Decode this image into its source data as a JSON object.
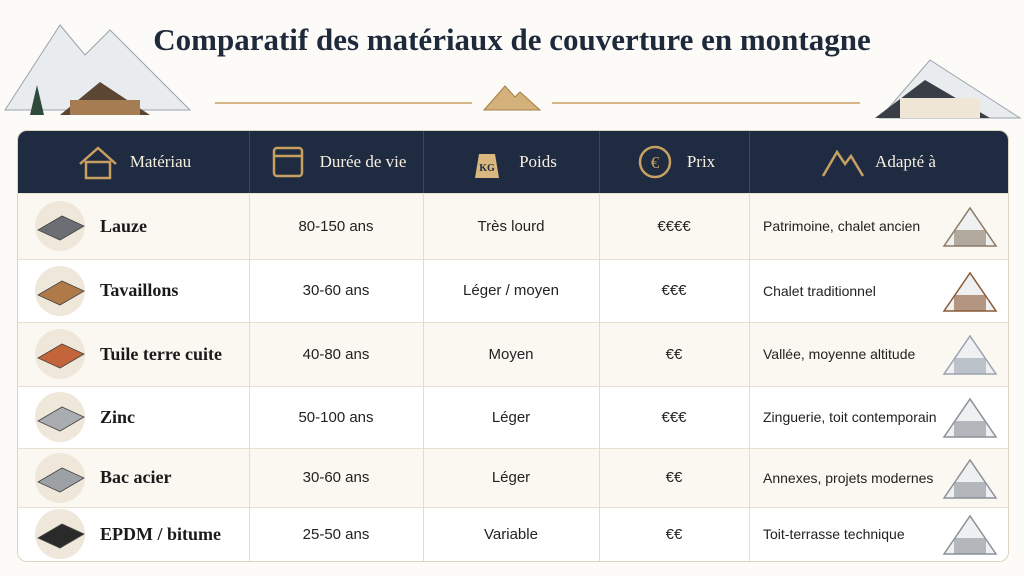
{
  "header": {
    "title": "Comparatif des matériaux de couverture en montagne"
  },
  "table": {
    "icons": {
      "weight": "KG",
      "price": "€"
    },
    "columns": [
      "Matériau",
      "Durée de vie",
      "Poids",
      "Prix",
      "Adapté à"
    ],
    "rows": [
      [
        "Lauze",
        "80-150 ans",
        "Très lourd",
        "€€€€",
        "Patrimoine, chalet ancien"
      ],
      [
        "Tavaillons",
        "30-60 ans",
        "Léger / moyen",
        "€€€",
        "Chalet traditionnel"
      ],
      [
        "Tuile terre cuite",
        "40-80 ans",
        "Moyen",
        "€€",
        "Vallée, moyenne altitude"
      ],
      [
        "Zinc",
        "50-100 ans",
        "Léger",
        "€€€",
        "Zinguerie, toit contemporain"
      ],
      [
        "Bac acier",
        "30-60 ans",
        "Léger",
        "€€",
        "Annexes, projets modernes"
      ],
      [
        "EPDM / bitume",
        "25-50 ans",
        "Variable",
        "€€",
        "Toit-terrasse technique"
      ]
    ]
  }
}
